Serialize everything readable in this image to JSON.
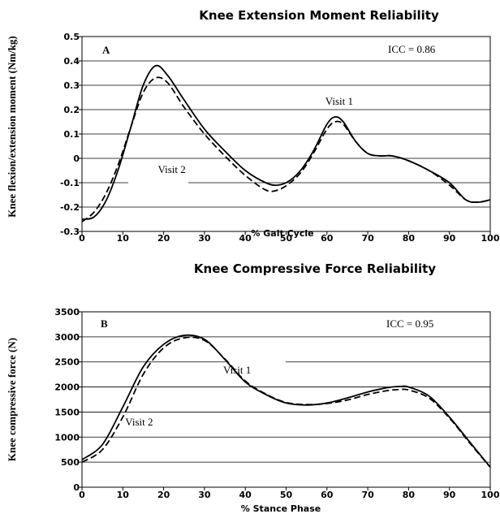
{
  "chart_data": [
    {
      "type": "line",
      "title": "Knee Extension Moment Reliability",
      "panel_label": "A",
      "icc_text": "ICC = 0.86",
      "xlabel": "% Gait Cycle",
      "ylabel": "Knee flexion/extension moment (Nm/kg)",
      "xlim": [
        0,
        100
      ],
      "ylim": [
        -0.3,
        0.5
      ],
      "xticks": [
        "0",
        "10",
        "20",
        "30",
        "40",
        "50",
        "60",
        "70",
        "80",
        "90",
        "100"
      ],
      "yticks": [
        "0.5",
        "0.4",
        "0.3",
        "0.2",
        "0.1",
        "0",
        "-0.1",
        "-0.2",
        "-0.3"
      ],
      "grid": "horizontal",
      "series": [
        {
          "name": "Visit 1",
          "style": "solid",
          "x": [
            0,
            3,
            6,
            9,
            12,
            15,
            18,
            21,
            25,
            30,
            35,
            40,
            45,
            48,
            51,
            54,
            57,
            60,
            62,
            64,
            67,
            70,
            73,
            76,
            80,
            85,
            90,
            94,
            97,
            100
          ],
          "y": [
            -0.25,
            -0.24,
            -0.17,
            -0.04,
            0.13,
            0.3,
            0.38,
            0.34,
            0.24,
            0.12,
            0.03,
            -0.05,
            -0.1,
            -0.11,
            -0.09,
            -0.04,
            0.04,
            0.14,
            0.17,
            0.15,
            0.07,
            0.02,
            0.01,
            0.01,
            -0.01,
            -0.05,
            -0.1,
            -0.17,
            -0.18,
            -0.17
          ]
        },
        {
          "name": "Visit 2",
          "style": "dashed",
          "x": [
            0,
            3,
            6,
            9,
            12,
            15,
            18,
            21,
            25,
            30,
            35,
            40,
            45,
            48,
            51,
            54,
            57,
            60,
            62,
            64,
            67,
            70,
            73,
            76,
            80,
            85,
            90,
            94,
            97,
            100
          ],
          "y": [
            -0.26,
            -0.22,
            -0.14,
            -0.02,
            0.13,
            0.27,
            0.33,
            0.31,
            0.21,
            0.1,
            0.01,
            -0.07,
            -0.13,
            -0.13,
            -0.1,
            -0.05,
            0.03,
            0.12,
            0.15,
            0.14,
            0.07,
            0.02,
            0.01,
            0.01,
            -0.01,
            -0.05,
            -0.11,
            -0.17,
            -0.18,
            -0.17
          ]
        }
      ],
      "annotations": [
        {
          "text": "Visit 1",
          "x": 63,
          "y": 0.22
        },
        {
          "text": "Visit 2",
          "x": 22,
          "y": -0.06
        }
      ]
    },
    {
      "type": "line",
      "title": "Knee Compressive Force Reliability",
      "panel_label": "B",
      "icc_text": "ICC = 0.95",
      "xlabel": "% Stance Phase",
      "ylabel": "Knee compressive force (N)",
      "xlim": [
        0,
        100
      ],
      "ylim": [
        0,
        3500
      ],
      "xticks": [
        "0",
        "10",
        "20",
        "30",
        "40",
        "50",
        "60",
        "70",
        "80",
        "90",
        "100"
      ],
      "yticks": [
        "3500",
        "3000",
        "2500",
        "2000",
        "1500",
        "1000",
        "500",
        "0"
      ],
      "grid": "horizontal",
      "series": [
        {
          "name": "Visit 1",
          "style": "solid",
          "x": [
            0,
            5,
            10,
            15,
            20,
            25,
            30,
            35,
            40,
            45,
            50,
            55,
            60,
            65,
            70,
            75,
            78,
            80,
            85,
            90,
            95,
            100
          ],
          "y": [
            550,
            850,
            1600,
            2400,
            2850,
            3030,
            2950,
            2550,
            2100,
            1850,
            1680,
            1640,
            1680,
            1780,
            1900,
            1990,
            2010,
            2000,
            1820,
            1400,
            900,
            400
          ],
          "visible_linestyle": "solid"
        },
        {
          "name": "Visit 2",
          "style": "dashed",
          "x": [
            0,
            5,
            10,
            15,
            20,
            25,
            30,
            35,
            40,
            45,
            50,
            55,
            60,
            65,
            70,
            75,
            78,
            80,
            85,
            90,
            95,
            100
          ],
          "y": [
            500,
            750,
            1400,
            2250,
            2780,
            2980,
            2930,
            2560,
            2120,
            1860,
            1690,
            1650,
            1670,
            1740,
            1850,
            1930,
            1950,
            1940,
            1780,
            1380,
            880,
            400
          ]
        }
      ],
      "annotations": [
        {
          "text": "Visit 1",
          "x": 38,
          "y": 2270
        },
        {
          "text": "Visit 2",
          "x": 14,
          "y": 1230
        }
      ]
    }
  ]
}
